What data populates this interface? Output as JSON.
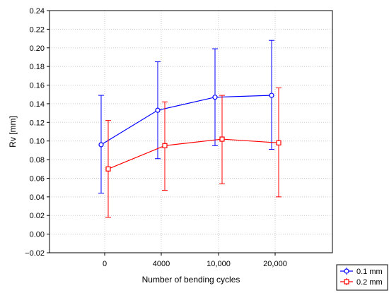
{
  "chart_data": {
    "type": "line",
    "xlabel": "Number of bending cycles",
    "ylabel": "Rv   [mm]",
    "categories": [
      "0",
      "4000",
      "10,000",
      "20,000"
    ],
    "ylim": [
      -0.02,
      0.24
    ],
    "yticks": [
      "−0.02",
      "0.00",
      "0.02",
      "0.04",
      "0.06",
      "0.08",
      "0.10",
      "0.12",
      "0.14",
      "0.16",
      "0.18",
      "0.20",
      "0.22",
      "0.24"
    ],
    "grid": true,
    "legend_position": "bottom-right",
    "series": [
      {
        "name": "0.1 mm",
        "color": "#0000ff",
        "marker": "circle",
        "values": [
          0.096,
          0.133,
          0.147,
          0.149
        ],
        "lower": [
          0.044,
          0.081,
          0.095,
          0.091
        ],
        "upper": [
          0.149,
          0.185,
          0.199,
          0.208
        ]
      },
      {
        "name": "0.2 mm",
        "color": "#ff0000",
        "marker": "square",
        "values": [
          0.07,
          0.095,
          0.102,
          0.098
        ],
        "lower": [
          0.018,
          0.047,
          0.054,
          0.04
        ],
        "upper": [
          0.122,
          0.142,
          0.149,
          0.157
        ]
      }
    ]
  }
}
